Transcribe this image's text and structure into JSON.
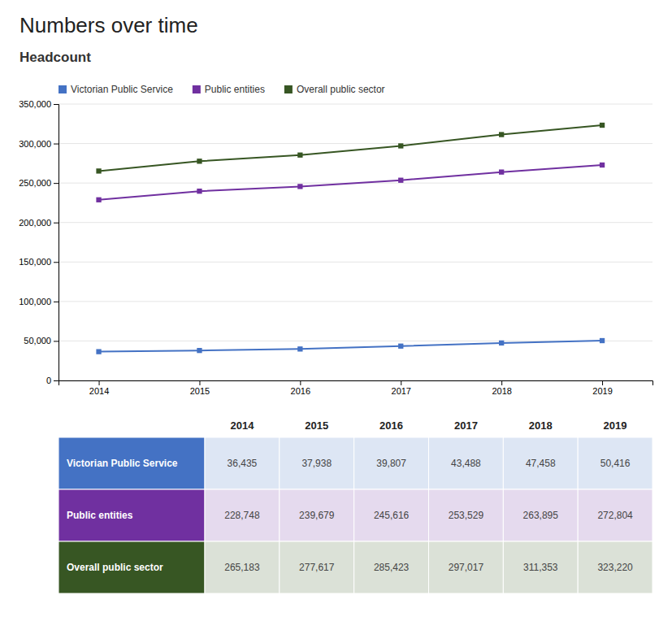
{
  "chart_data": {
    "type": "line",
    "title": "Numbers over time",
    "subtitle": "Headcount",
    "x": [
      2014,
      2015,
      2016,
      2017,
      2018,
      2019
    ],
    "xlim": [
      2013.6,
      2019.5
    ],
    "xticks": [
      2014,
      2015,
      2016,
      2017,
      2018,
      2019
    ],
    "ylim": [
      0,
      350000
    ],
    "yticks": [
      0,
      {
        "value": 50000,
        "label": "50,000"
      },
      {
        "value": 100000,
        "label": "100,000"
      },
      {
        "value": 150000,
        "label": "150,000"
      },
      {
        "value": 200000,
        "label": "200,000"
      },
      {
        "value": 250000,
        "label": "250,000"
      },
      {
        "value": 300000,
        "label": "300,000"
      },
      {
        "value": 350000,
        "label": "350,000"
      }
    ],
    "grid": true,
    "legend": "top-left",
    "series": [
      {
        "name": "Victorian Public Service",
        "color": "#4472c4",
        "marker": "square",
        "values": [
          36435,
          37938,
          39807,
          43488,
          47458,
          50416
        ],
        "value_labels": [
          "36,435",
          "37,938",
          "39,807",
          "43,488",
          "47,458",
          "50,416"
        ]
      },
      {
        "name": "Public entities",
        "color": "#7030a0",
        "marker": "square",
        "values": [
          228748,
          239679,
          245616,
          253529,
          263895,
          272804
        ],
        "value_labels": [
          "228,748",
          "239,679",
          "245,616",
          "253,529",
          "263,895",
          "272,804"
        ]
      },
      {
        "name": "Overall public sector",
        "color": "#375623",
        "marker": "square",
        "values": [
          265183,
          277617,
          285423,
          297017,
          311353,
          323220
        ],
        "value_labels": [
          "265,183",
          "277,617",
          "285,423",
          "297,017",
          "311,353",
          "323,220"
        ]
      }
    ]
  }
}
